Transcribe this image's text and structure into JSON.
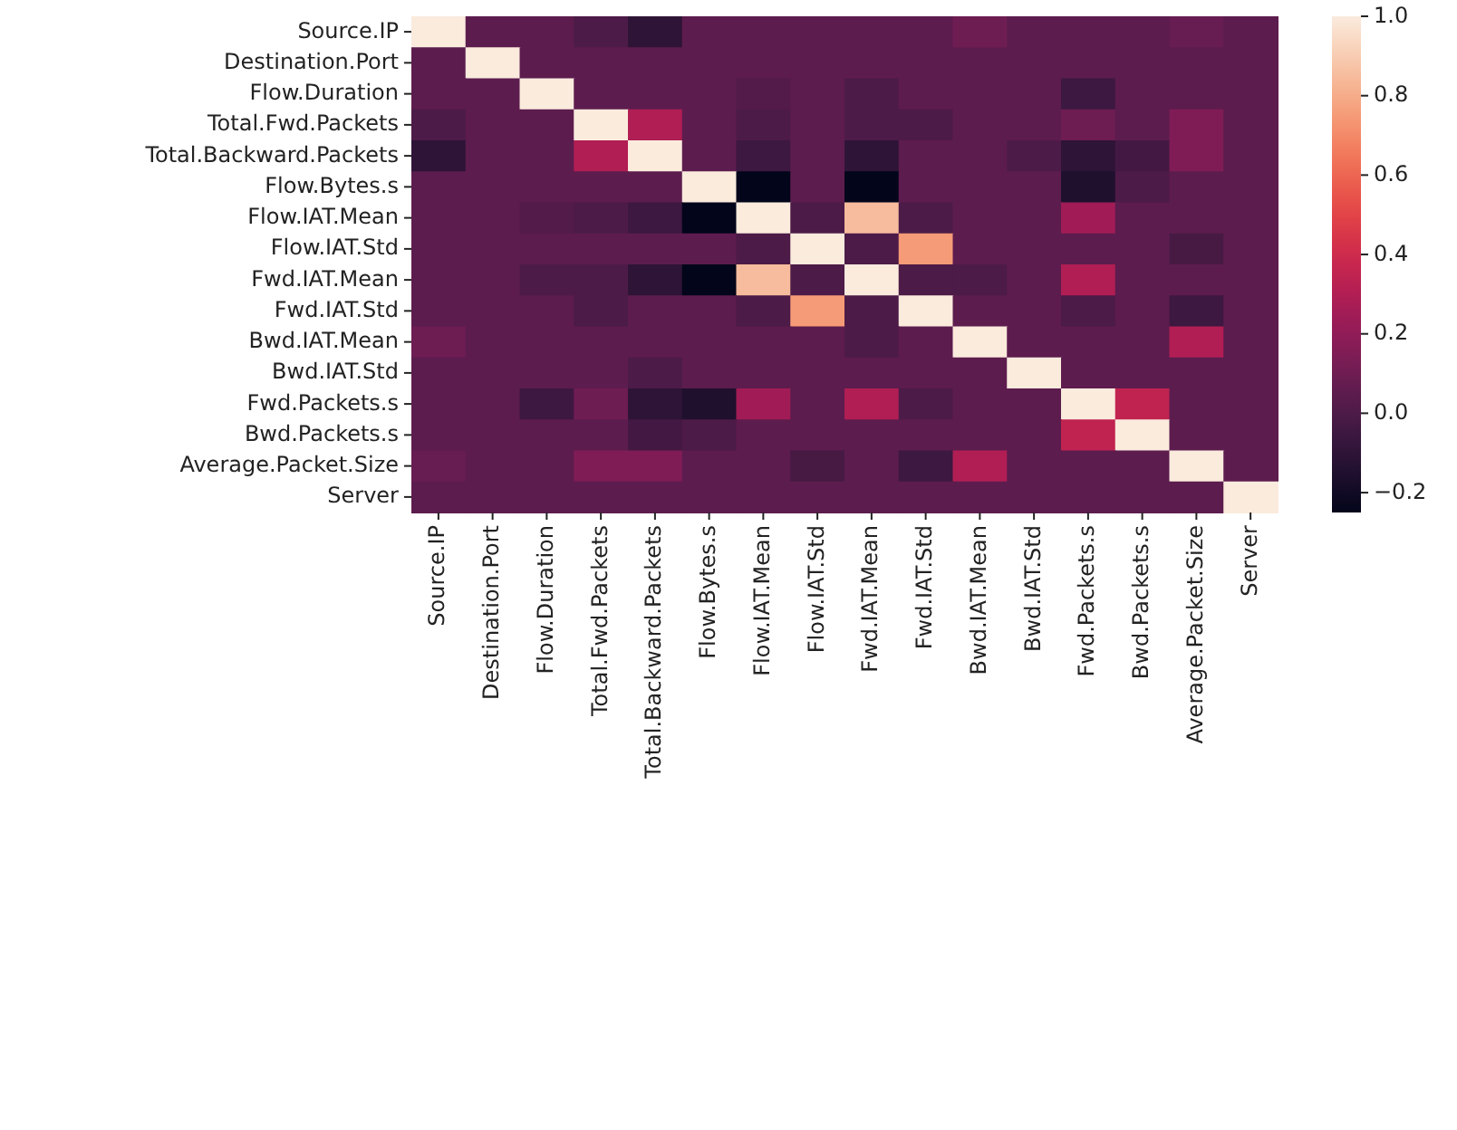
{
  "chart_data": {
    "type": "heatmap",
    "categories": [
      "Source.IP",
      "Destination.Port",
      "Flow.Duration",
      "Total.Fwd.Packets",
      "Total.Backward.Packets",
      "Flow.Bytes.s",
      "Flow.IAT.Mean",
      "Flow.IAT.Std",
      "Fwd.IAT.Mean",
      "Fwd.IAT.Std",
      "Bwd.IAT.Mean",
      "Bwd.IAT.Std",
      "Fwd.Packets.s",
      "Bwd.Packets.s",
      "Average.Packet.Size",
      "Server"
    ],
    "y_categories": [
      "Source.IP",
      "Destination.Port",
      "Flow.Duration",
      "Total.Fwd.Packets",
      "Total.Backward.Packets",
      "Flow.Bytes.s",
      "Flow.IAT.Mean",
      "Flow.IAT.Std",
      "Fwd.IAT.Mean",
      "Fwd.IAT.Std",
      "Bwd.IAT.Mean",
      "Bwd.IAT.Std",
      "Fwd.Packets.s",
      "Bwd.Packets.s",
      "Average.Packet.Size",
      "Server"
    ],
    "cells": [
      [
        1,
        0.05,
        0.05,
        0.0,
        -0.1,
        0.05,
        0.05,
        0.05,
        0.05,
        0.05,
        0.1,
        0.05,
        0.05,
        0.05,
        0.08,
        0.05
      ],
      [
        0.05,
        1,
        0.05,
        0.05,
        0.05,
        0.05,
        0.05,
        0.05,
        0.05,
        0.05,
        0.05,
        0.05,
        0.05,
        0.05,
        0.05,
        0.05
      ],
      [
        0.05,
        0.05,
        1,
        0.05,
        0.05,
        0.05,
        0.02,
        0.05,
        0.0,
        0.05,
        0.05,
        0.05,
        -0.05,
        0.05,
        0.05,
        0.05
      ],
      [
        0.0,
        0.05,
        0.05,
        1,
        0.3,
        0.05,
        0.0,
        0.05,
        0.0,
        0.0,
        0.05,
        0.05,
        0.1,
        0.05,
        0.15,
        0.05
      ],
      [
        -0.1,
        0.05,
        0.05,
        0.3,
        1,
        0.05,
        -0.05,
        0.05,
        -0.1,
        0.05,
        0.05,
        0.0,
        -0.1,
        -0.03,
        0.15,
        0.05
      ],
      [
        0.05,
        0.05,
        0.05,
        0.05,
        0.05,
        1,
        -0.25,
        0.05,
        -0.25,
        0.05,
        0.05,
        0.05,
        -0.15,
        0.0,
        0.05,
        0.05
      ],
      [
        0.05,
        0.05,
        0.02,
        0.0,
        -0.05,
        -0.25,
        1,
        0.0,
        0.85,
        0.0,
        0.05,
        0.05,
        0.25,
        0.05,
        0.05,
        0.05
      ],
      [
        0.05,
        0.05,
        0.05,
        0.05,
        0.05,
        0.05,
        0.0,
        1,
        0.0,
        0.75,
        0.05,
        0.05,
        0.05,
        0.05,
        -0.02,
        0.05
      ],
      [
        0.05,
        0.05,
        0.0,
        0.0,
        -0.1,
        -0.25,
        0.85,
        0.0,
        1,
        0.0,
        0.0,
        0.05,
        0.3,
        0.05,
        0.05,
        0.05
      ],
      [
        0.05,
        0.05,
        0.05,
        0.0,
        0.05,
        0.05,
        0.0,
        0.75,
        0.0,
        1,
        0.05,
        0.05,
        0.0,
        0.05,
        -0.05,
        0.05
      ],
      [
        0.1,
        0.05,
        0.05,
        0.05,
        0.05,
        0.05,
        0.05,
        0.05,
        0.0,
        0.05,
        1,
        0.05,
        0.05,
        0.05,
        0.3,
        0.05
      ],
      [
        0.05,
        0.05,
        0.05,
        0.05,
        0.0,
        0.05,
        0.05,
        0.05,
        0.05,
        0.05,
        0.05,
        1,
        0.05,
        0.05,
        0.05,
        0.05
      ],
      [
        0.05,
        0.05,
        -0.05,
        0.1,
        -0.1,
        -0.15,
        0.25,
        0.05,
        0.3,
        0.0,
        0.05,
        0.05,
        1,
        0.35,
        0.05,
        0.05
      ],
      [
        0.05,
        0.05,
        0.05,
        0.05,
        -0.03,
        0.0,
        0.05,
        0.05,
        0.05,
        0.05,
        0.05,
        0.05,
        0.35,
        1,
        0.05,
        0.05
      ],
      [
        0.08,
        0.05,
        0.05,
        0.15,
        0.15,
        0.05,
        0.05,
        -0.02,
        0.05,
        -0.05,
        0.3,
        0.05,
        0.05,
        0.05,
        1,
        0.05
      ],
      [
        0.05,
        0.05,
        0.05,
        0.05,
        0.05,
        0.05,
        0.05,
        0.05,
        0.05,
        0.05,
        0.05,
        0.05,
        0.05,
        0.05,
        0.05,
        1
      ]
    ],
    "clim": [
      -0.25,
      1
    ],
    "cticks": [
      {
        "value": -0.2,
        "label": "−0.2"
      },
      {
        "value": 0,
        "label": "0.0"
      },
      {
        "value": 0.2,
        "label": "0.2"
      },
      {
        "value": 0.4,
        "label": "0.4"
      },
      {
        "value": 0.6,
        "label": "0.6"
      },
      {
        "value": 0.8,
        "label": "0.8"
      },
      {
        "value": 1,
        "label": "1.0"
      }
    ]
  }
}
